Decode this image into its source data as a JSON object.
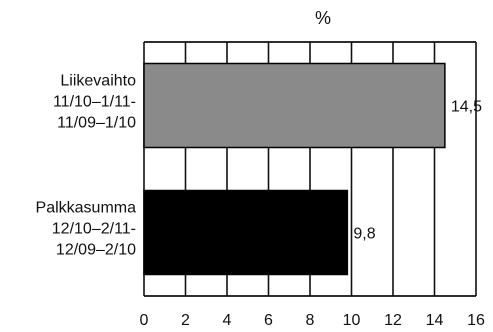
{
  "chart_data": {
    "type": "bar",
    "orientation": "horizontal",
    "title": "%",
    "categories": [
      [
        "Liikevaihto",
        "11/10–1/11-",
        "11/09–1/10"
      ],
      [
        "Palkkasumma",
        "12/10–2/11-",
        "12/09–2/10"
      ]
    ],
    "values": [
      14.5,
      9.8
    ],
    "value_labels": [
      "14,5",
      "9,8"
    ],
    "xlim": [
      0,
      16
    ],
    "xticks": [
      0,
      2,
      4,
      6,
      8,
      10,
      12,
      14,
      16
    ],
    "grid": true,
    "colors": {
      "bar_0": "#8a8a8a",
      "bar_1": "#000000",
      "grid": "#111111"
    }
  }
}
